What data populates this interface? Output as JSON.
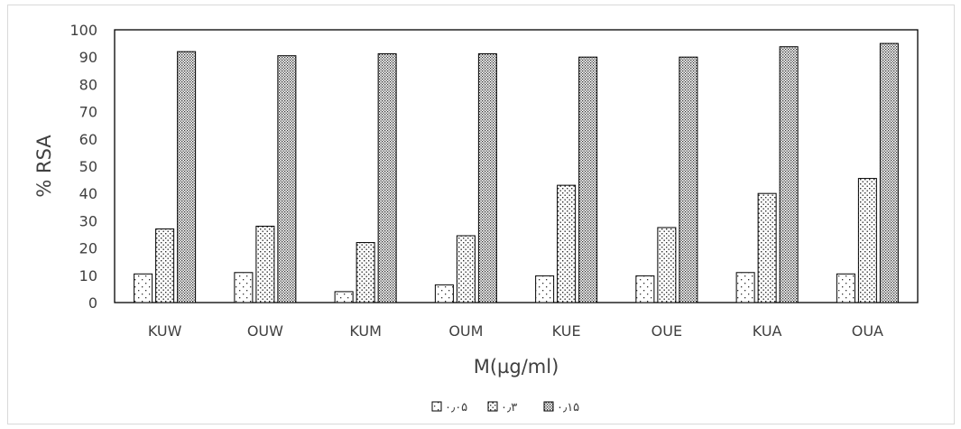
{
  "chart_data": {
    "type": "bar",
    "categories": [
      "KUW",
      "OUW",
      "KUM",
      "OUM",
      "KUE",
      "OUE",
      "KUA",
      "OUA"
    ],
    "series": [
      {
        "name": "۰٫۰۵",
        "values": [
          10.5,
          11,
          4,
          6.5,
          9.8,
          9.8,
          11,
          10.5
        ],
        "pattern": "sparse-dots"
      },
      {
        "name": "۰٫۳",
        "values": [
          27,
          28,
          22,
          24.5,
          43,
          27.5,
          40,
          45.5
        ],
        "pattern": "medium-dots"
      },
      {
        "name": "۰٫۱۵",
        "values": [
          92,
          90.5,
          91.2,
          91.2,
          90,
          90,
          93.8,
          95
        ],
        "pattern": "dense-dots"
      }
    ],
    "xlabel": "M(µg/ml)",
    "ylabel": "% RSA",
    "ylim": [
      0,
      100
    ],
    "yticks": [
      0,
      10,
      20,
      30,
      40,
      50,
      60,
      70,
      80,
      90,
      100
    ],
    "grid": false,
    "legend_position": "bottom"
  }
}
